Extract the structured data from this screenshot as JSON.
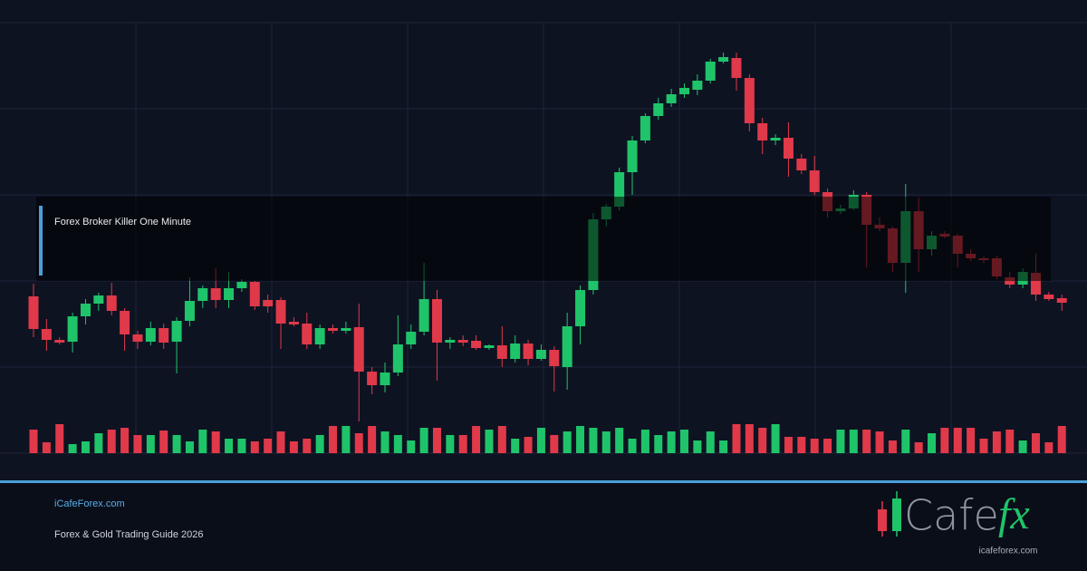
{
  "chart_data": {
    "type": "candlestick",
    "open": [
      173,
      137,
      125,
      123,
      151,
      165,
      174,
      157,
      131,
      123,
      138,
      123,
      146,
      168,
      182,
      169,
      182,
      189,
      169,
      169,
      145,
      143,
      120,
      138,
      135,
      139,
      90,
      75,
      89,
      120,
      134,
      170,
      122,
      125,
      124,
      116,
      119,
      104,
      121,
      104,
      114,
      95,
      140,
      180,
      258,
      272,
      310,
      345,
      372,
      386,
      396,
      401,
      411,
      432,
      436,
      414,
      364,
      345,
      348,
      325,
      312,
      288,
      267,
      270,
      285,
      252,
      248,
      210,
      267,
      225,
      242,
      240,
      220,
      215,
      215,
      194,
      186,
      199,
      175,
      171
    ],
    "high": [
      187,
      148,
      128,
      155,
      170,
      177,
      188,
      160,
      135,
      145,
      143,
      150,
      194,
      185,
      204,
      200,
      192,
      190,
      175,
      172,
      150,
      155,
      142,
      142,
      145,
      165,
      95,
      100,
      152,
      142,
      210,
      180,
      128,
      130,
      130,
      120,
      140,
      130,
      125,
      120,
      118,
      155,
      185,
      265,
      275,
      315,
      350,
      375,
      392,
      402,
      408,
      418,
      435,
      442,
      442,
      418,
      370,
      352,
      365,
      330,
      328,
      292,
      274,
      290,
      288,
      260,
      250,
      297,
      282,
      245,
      245,
      242,
      225,
      217,
      218,
      200,
      204,
      220,
      178,
      175
    ],
    "low": [
      128,
      113,
      120,
      111,
      142,
      157,
      152,
      113,
      115,
      119,
      115,
      88,
      140,
      160,
      160,
      160,
      178,
      158,
      155,
      115,
      140,
      115,
      115,
      132,
      132,
      35,
      65,
      67,
      85,
      115,
      130,
      80,
      115,
      118,
      114,
      114,
      95,
      100,
      97,
      102,
      68,
      70,
      120,
      175,
      250,
      268,
      285,
      342,
      368,
      382,
      392,
      395,
      408,
      430,
      400,
      355,
      330,
      340,
      305,
      308,
      285,
      260,
      264,
      268,
      205,
      245,
      200,
      177,
      200,
      218,
      237,
      205,
      212,
      210,
      192,
      182,
      182,
      168,
      168,
      157
    ],
    "close": [
      137,
      125,
      122,
      151,
      165,
      174,
      157,
      131,
      123,
      138,
      122,
      146,
      168,
      182,
      169,
      182,
      189,
      162,
      162,
      143,
      142,
      120,
      138,
      135,
      138,
      90,
      75,
      89,
      120,
      134,
      170,
      122,
      125,
      122,
      116,
      119,
      104,
      121,
      104,
      114,
      96,
      140,
      180,
      258,
      272,
      310,
      345,
      372,
      386,
      396,
      403,
      411,
      432,
      437,
      414,
      364,
      345,
      348,
      325,
      312,
      288,
      267,
      270,
      285,
      252,
      248,
      210,
      267,
      225,
      240,
      239,
      220,
      215,
      213,
      195,
      186,
      200,
      175,
      170,
      166
    ],
    "volume": [
      26,
      12,
      32,
      10,
      13,
      22,
      26,
      28,
      20,
      20,
      25,
      20,
      13,
      26,
      24,
      16,
      16,
      13,
      16,
      24,
      13,
      16,
      20,
      30,
      30,
      22,
      30,
      24,
      20,
      14,
      28,
      28,
      20,
      20,
      30,
      26,
      30,
      16,
      18,
      28,
      20,
      24,
      30,
      28,
      24,
      28,
      16,
      26,
      20,
      24,
      26,
      14,
      24,
      14,
      32,
      32,
      28,
      32,
      18,
      18,
      16,
      16,
      26,
      26,
      26,
      24,
      14,
      26,
      12,
      22,
      28,
      28,
      28,
      16,
      24,
      26,
      14,
      22,
      12,
      30
    ],
    "ylim": [
      0,
      475
    ],
    "yticks": [
      0,
      95,
      190,
      285,
      380,
      475
    ],
    "volume_ylim": [
      0,
      95
    ],
    "up_color": "#1fc46a",
    "down_color": "#e0394a",
    "grid": true
  },
  "overlay_label": "Forex Broker Killer One Minute",
  "footer": {
    "site": "iCafeForex.com",
    "subtitle": "Forex & Gold Trading Guide 2026",
    "logo_word": "Cafe",
    "logo_fx": "fx",
    "logo_url": "icafeforex.com"
  }
}
